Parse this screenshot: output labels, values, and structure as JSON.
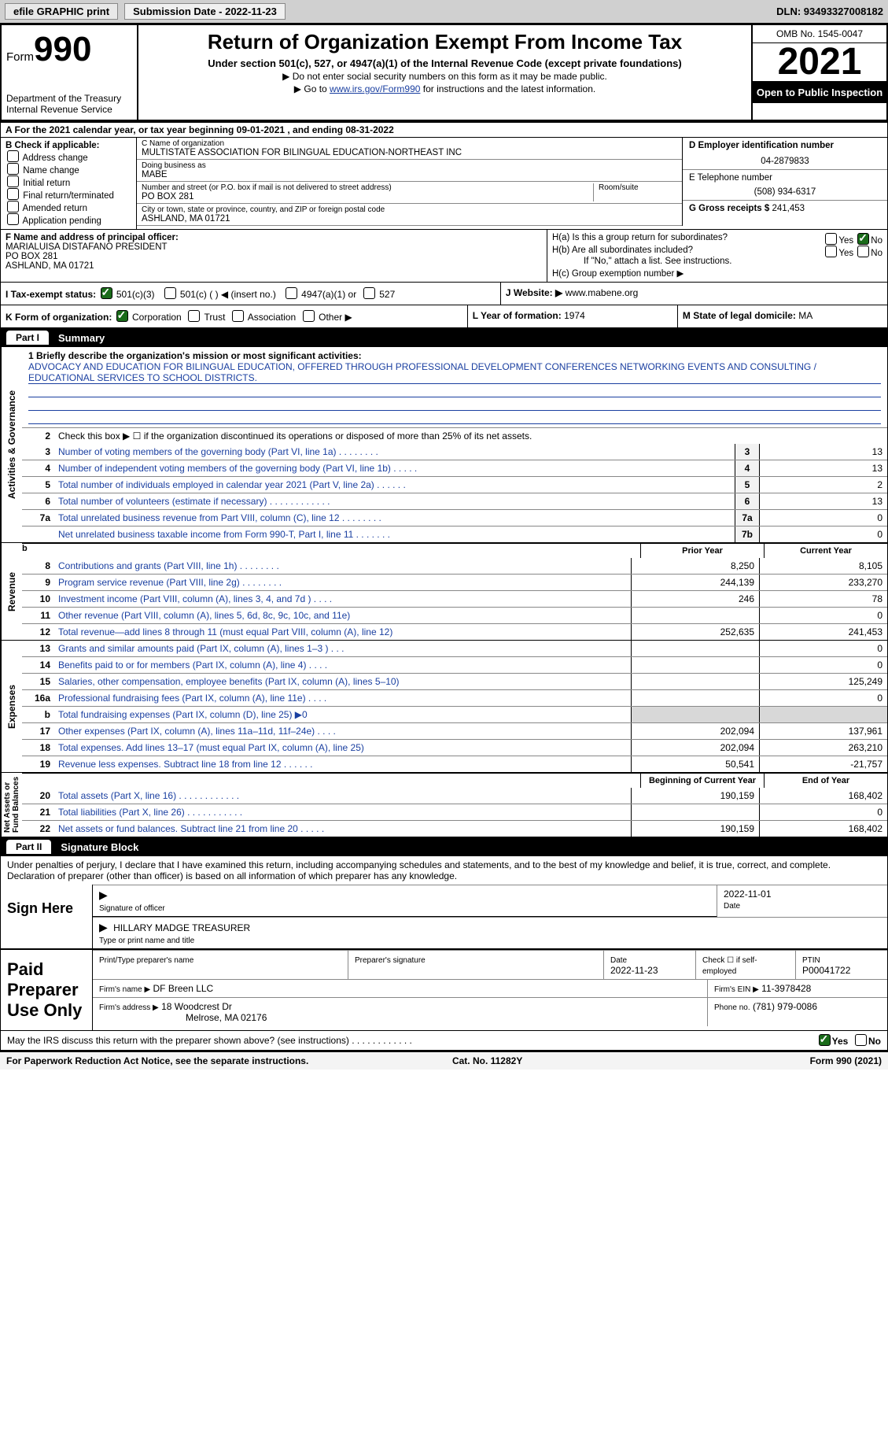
{
  "topbar": {
    "efile": "efile GRAPHIC print",
    "submission": "Submission Date - 2022-11-23",
    "dln": "DLN: 93493327008182"
  },
  "header": {
    "form_word": "Form",
    "form_num": "990",
    "dept": "Department of the Treasury",
    "irs_line": "Internal Revenue Service",
    "title": "Return of Organization Exempt From Income Tax",
    "sub1": "Under section 501(c), 527, or 4947(a)(1) of the Internal Revenue Code (except private foundations)",
    "sub2": "▶ Do not enter social security numbers on this form as it may be made public.",
    "sub3_pre": "▶ Go to ",
    "sub3_link": "www.irs.gov/Form990",
    "sub3_post": " for instructions and the latest information.",
    "omb": "OMB No. 1545-0047",
    "year": "2021",
    "inspect": "Open to Public Inspection"
  },
  "row_a": "A  For the 2021 calendar year, or tax year beginning 09-01-2021    , and ending 08-31-2022",
  "col_b": {
    "title": "B Check if applicable:",
    "items": [
      "Address change",
      "Name change",
      "Initial return",
      "Final return/terminated",
      "Amended return",
      "Application pending"
    ]
  },
  "col_c": {
    "name_lbl": "C Name of organization",
    "name": "MULTISTATE ASSOCIATION FOR BILINGUAL EDUCATION-NORTHEAST INC",
    "dba_lbl": "Doing business as",
    "dba": "MABE",
    "addr_lbl": "Number and street (or P.O. box if mail is not delivered to street address)",
    "room_lbl": "Room/suite",
    "addr": "PO BOX 281",
    "city_lbl": "City or town, state or province, country, and ZIP or foreign postal code",
    "city": "ASHLAND, MA  01721"
  },
  "col_d": {
    "ein_lbl": "D Employer identification number",
    "ein": "04-2879833",
    "tel_lbl": "E Telephone number",
    "tel": "(508) 934-6317",
    "gross_lbl": "G Gross receipts $",
    "gross": "241,453"
  },
  "col_f": {
    "lbl": "F  Name and address of principal officer:",
    "name": "MARIALUISA DISTAFANO PRESIDENT",
    "addr1": "PO BOX 281",
    "addr2": "ASHLAND, MA  01721"
  },
  "col_h": {
    "a": "H(a)  Is this a group return for subordinates?",
    "b": "H(b)  Are all subordinates included?",
    "note": "If \"No,\" attach a list. See instructions.",
    "c": "H(c)  Group exemption number ▶"
  },
  "row_i": {
    "lbl": "I   Tax-exempt status:",
    "o1": "501(c)(3)",
    "o2": "501(c) (   ) ◀ (insert no.)",
    "o3": "4947(a)(1) or",
    "o4": "527"
  },
  "row_j": {
    "lbl": "J   Website: ▶",
    "val": "www.mabene.org"
  },
  "row_k": {
    "lbl": "K Form of organization:",
    "o1": "Corporation",
    "o2": "Trust",
    "o3": "Association",
    "o4": "Other ▶"
  },
  "row_l": {
    "lbl": "L Year of formation:",
    "val": "1974"
  },
  "row_m": {
    "lbl": "M State of legal domicile:",
    "val": "MA"
  },
  "part1": {
    "tag": "Part I",
    "title": "Summary"
  },
  "mission": {
    "lbl": "1   Briefly describe the organization's mission or most significant activities:",
    "text": "ADVOCACY AND EDUCATION FOR BILINGUAL EDUCATION, OFFERED THROUGH PROFESSIONAL DEVELOPMENT CONFERENCES NETWORKING EVENTS AND CONSULTING / EDUCATIONAL SERVICES TO SCHOOL DISTRICTS."
  },
  "line2": "Check this box ▶ ☐  if the organization discontinued its operations or disposed of more than 25% of its net assets.",
  "summary_lines": [
    {
      "n": "3",
      "d": "Number of voting members of the governing body (Part VI, line 1a)  .    .    .    .    .    .    .    .",
      "box": "3",
      "v": "13"
    },
    {
      "n": "4",
      "d": "Number of independent voting members of the governing body (Part VI, line 1b)  .    .    .    .    .",
      "box": "4",
      "v": "13"
    },
    {
      "n": "5",
      "d": "Total number of individuals employed in calendar year 2021 (Part V, line 2a)  .    .    .    .    .    .",
      "box": "5",
      "v": "2"
    },
    {
      "n": "6",
      "d": "Total number of volunteers (estimate if necessary)    .    .    .    .    .    .    .    .    .    .    .    .",
      "box": "6",
      "v": "13"
    },
    {
      "n": "7a",
      "d": "Total unrelated business revenue from Part VIII, column (C), line 12   .    .    .    .    .    .    .    .",
      "box": "7a",
      "v": "0"
    },
    {
      "n": "",
      "d": "Net unrelated business taxable income from Form 990-T, Part I, line 11  .    .    .    .    .    .    .",
      "box": "7b",
      "v": "0"
    }
  ],
  "pycy_hdr": {
    "p": "Prior Year",
    "c": "Current Year"
  },
  "revenue": [
    {
      "n": "8",
      "d": "Contributions and grants (Part VIII, line 1h)    .    .    .    .    .    .    .    .",
      "p": "8,250",
      "c": "8,105"
    },
    {
      "n": "9",
      "d": "Program service revenue (Part VIII, line 2g)    .    .    .    .    .    .    .    .",
      "p": "244,139",
      "c": "233,270"
    },
    {
      "n": "10",
      "d": "Investment income (Part VIII, column (A), lines 3, 4, and 7d )    .    .    .    .",
      "p": "246",
      "c": "78"
    },
    {
      "n": "11",
      "d": "Other revenue (Part VIII, column (A), lines 5, 6d, 8c, 9c, 10c, and 11e)",
      "p": "",
      "c": "0"
    },
    {
      "n": "12",
      "d": "Total revenue—add lines 8 through 11 (must equal Part VIII, column (A), line 12)",
      "p": "252,635",
      "c": "241,453"
    }
  ],
  "expenses": [
    {
      "n": "13",
      "d": "Grants and similar amounts paid (Part IX, column (A), lines 1–3 )    .    .    .",
      "p": "",
      "c": "0"
    },
    {
      "n": "14",
      "d": "Benefits paid to or for members (Part IX, column (A), line 4)  .    .    .    .",
      "p": "",
      "c": "0"
    },
    {
      "n": "15",
      "d": "Salaries, other compensation, employee benefits (Part IX, column (A), lines 5–10)",
      "p": "",
      "c": "125,249"
    },
    {
      "n": "16a",
      "d": "Professional fundraising fees (Part IX, column (A), line 11e)    .    .    .    .",
      "p": "",
      "c": "0"
    },
    {
      "n": "b",
      "d": "Total fundraising expenses (Part IX, column (D), line 25) ▶0",
      "p": "SHADE",
      "c": "SHADE"
    },
    {
      "n": "17",
      "d": "Other expenses (Part IX, column (A), lines 11a–11d, 11f–24e)    .    .    .    .",
      "p": "202,094",
      "c": "137,961"
    },
    {
      "n": "18",
      "d": "Total expenses. Add lines 13–17 (must equal Part IX, column (A), line 25)",
      "p": "202,094",
      "c": "263,210"
    },
    {
      "n": "19",
      "d": "Revenue less expenses. Subtract line 18 from line 12  .    .    .    .    .    .",
      "p": "50,541",
      "c": "-21,757"
    }
  ],
  "na_hdr": {
    "p": "Beginning of Current Year",
    "c": "End of Year"
  },
  "netassets": [
    {
      "n": "20",
      "d": "Total assets (Part X, line 16)  .    .    .    .    .    .    .    .    .    .    .    .",
      "p": "190,159",
      "c": "168,402"
    },
    {
      "n": "21",
      "d": "Total liabilities (Part X, line 26)  .    .    .    .    .    .    .    .    .    .    .",
      "p": "",
      "c": "0"
    },
    {
      "n": "22",
      "d": "Net assets or fund balances. Subtract line 21 from line 20  .    .    .    .    .",
      "p": "190,159",
      "c": "168,402"
    }
  ],
  "part2": {
    "tag": "Part II",
    "title": "Signature Block"
  },
  "sig_intro": "Under penalties of perjury, I declare that I have examined this return, including accompanying schedules and statements, and to the best of my knowledge and belief, it is true, correct, and complete. Declaration of preparer (other than officer) is based on all information of which preparer has any knowledge.",
  "sign_here": "Sign Here",
  "sig": {
    "sig_officer_lbl": "Signature of officer",
    "date_lbl": "Date",
    "sig_date": "2022-11-01",
    "name": "HILLARY MADGE  TREASURER",
    "name_lbl": "Type or print name and title"
  },
  "paid": "Paid Preparer Use Only",
  "prep": {
    "c1": "Print/Type preparer's name",
    "c2": "Preparer's signature",
    "c3_lbl": "Date",
    "c3": "2022-11-23",
    "c4_lbl": "Check ☐ if self-employed",
    "c5_lbl": "PTIN",
    "c5": "P00041722",
    "firm_lbl": "Firm's name    ▶",
    "firm": "DF Breen LLC",
    "ein_lbl": "Firm's EIN ▶",
    "ein": "11-3978428",
    "addr_lbl": "Firm's address ▶",
    "addr1": "18 Woodcrest Dr",
    "addr2": "Melrose, MA  02176",
    "phone_lbl": "Phone no.",
    "phone": "(781) 979-0086"
  },
  "discuss": "May the IRS discuss this return with the preparer shown above? (see instructions)   .    .    .    .    .    .    .    .    .    .    .    .",
  "footer": {
    "left": "For Paperwork Reduction Act Notice, see the separate instructions.",
    "mid": "Cat. No. 11282Y",
    "right": "Form 990 (2021)"
  },
  "yes": "Yes",
  "no": "No"
}
